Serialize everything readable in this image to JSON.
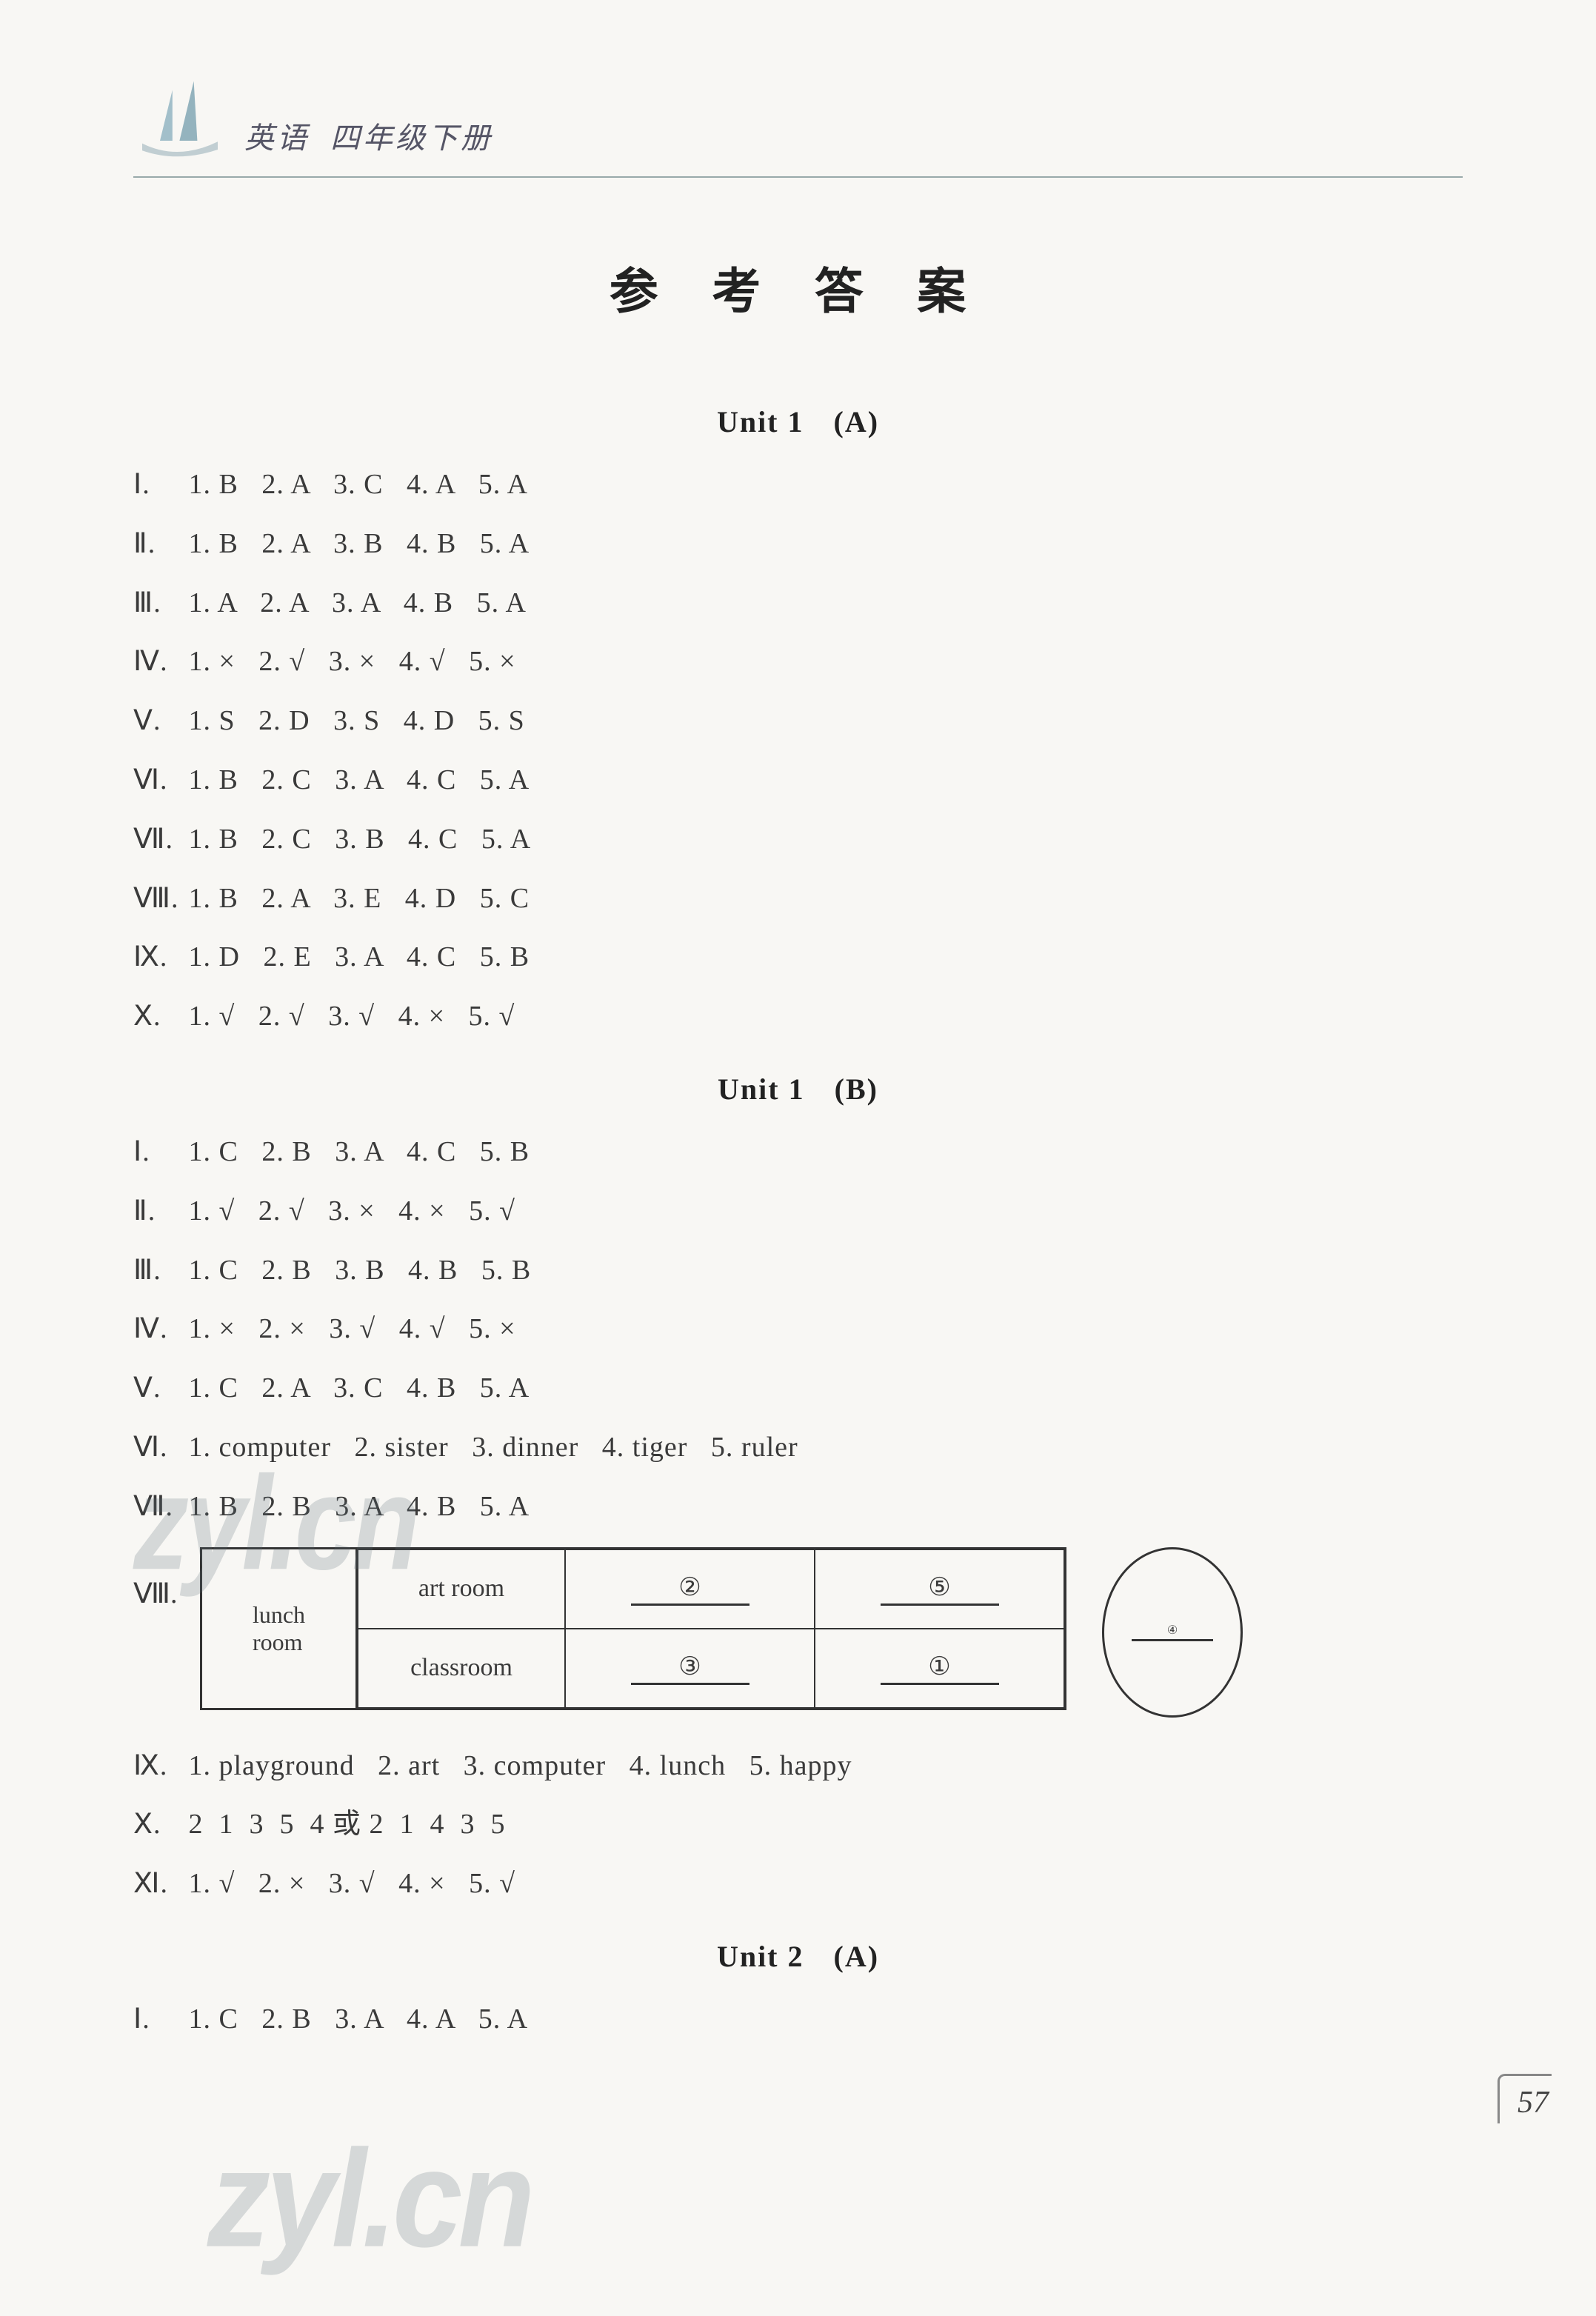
{
  "header": {
    "subject": "英语",
    "grade": "四年级下册"
  },
  "title": "参 考 答 案",
  "page_number": "57",
  "watermark": "zyl.cn",
  "colors": {
    "text": "#3a3a3a",
    "title": "#222222",
    "rule": "#99aaaa",
    "background": "#f8f7f4",
    "watermark": "rgba(90,110,120,0.22)"
  },
  "typography": {
    "body_fontsize_pt": 28,
    "title_fontsize_pt": 50,
    "heading_fontsize_pt": 30
  },
  "sections": [
    {
      "heading": "Unit 1",
      "variant": "(A)",
      "lines": [
        {
          "roman": "Ⅰ",
          "items": [
            "1. B",
            "2. A",
            "3. C",
            "4. A",
            "5. A"
          ]
        },
        {
          "roman": "Ⅱ",
          "items": [
            "1. B",
            "2. A",
            "3. B",
            "4. B",
            "5. A"
          ]
        },
        {
          "roman": "Ⅲ",
          "items": [
            "1. A",
            "2. A",
            "3. A",
            "4. B",
            "5. A"
          ]
        },
        {
          "roman": "Ⅳ",
          "items": [
            "1. ×",
            "2. √",
            "3. ×",
            "4. √",
            "5. ×"
          ]
        },
        {
          "roman": "Ⅴ",
          "items": [
            "1. S",
            "2. D",
            "3. S",
            "4. D",
            "5. S"
          ]
        },
        {
          "roman": "Ⅵ",
          "items": [
            "1. B",
            "2. C",
            "3. A",
            "4. C",
            "5. A"
          ]
        },
        {
          "roman": "Ⅶ",
          "items": [
            "1. B",
            "2. C",
            "3. B",
            "4. C",
            "5. A"
          ]
        },
        {
          "roman": "Ⅷ",
          "items": [
            "1. B",
            "2. A",
            "3. E",
            "4. D",
            "5. C"
          ]
        },
        {
          "roman": "Ⅸ",
          "items": [
            "1. D",
            "2. E",
            "3. A",
            "4. C",
            "5. B"
          ]
        },
        {
          "roman": "Ⅹ",
          "items": [
            "1. √",
            "2. √",
            "3. √",
            "4. ×",
            "5. √"
          ]
        }
      ]
    },
    {
      "heading": "Unit 1",
      "variant": "(B)",
      "lines": [
        {
          "roman": "Ⅰ",
          "items": [
            "1. C",
            "2. B",
            "3. A",
            "4. C",
            "5. B"
          ]
        },
        {
          "roman": "Ⅱ",
          "items": [
            "1. √",
            "2. √",
            "3. ×",
            "4. ×",
            "5. √"
          ]
        },
        {
          "roman": "Ⅲ",
          "items": [
            "1. C",
            "2. B",
            "3. B",
            "4. B",
            "5. B"
          ]
        },
        {
          "roman": "Ⅳ",
          "items": [
            "1. ×",
            "2. ×",
            "3. √",
            "4. √",
            "5. ×"
          ]
        },
        {
          "roman": "Ⅴ",
          "items": [
            "1. C",
            "2. A",
            "3. C",
            "4. B",
            "5. A"
          ]
        },
        {
          "roman": "Ⅵ",
          "items": [
            "1. computer",
            "2. sister",
            "3. dinner",
            "4. tiger",
            "5. ruler"
          ]
        },
        {
          "roman": "Ⅶ",
          "items": [
            "1. B",
            "2. B",
            "3. A",
            "4. B",
            "5. A"
          ]
        }
      ],
      "diagram": {
        "roman": "Ⅷ",
        "left_box": "lunch room",
        "grid": {
          "rows": [
            {
              "label": "art room",
              "cells": [
                "②",
                "⑤"
              ]
            },
            {
              "label": "classroom",
              "cells": [
                "③",
                "①"
              ]
            }
          ]
        },
        "oval": "④"
      },
      "lines_after": [
        {
          "roman": "Ⅸ",
          "items": [
            "1. playground",
            "2. art",
            "3. computer",
            "4. lunch",
            "5. happy"
          ]
        },
        {
          "roman": "Ⅹ",
          "items": [
            "2  1  3  5  4 或 2  1  4  3  5"
          ]
        },
        {
          "roman": "Ⅺ",
          "items": [
            "1. √",
            "2. ×",
            "3. √",
            "4. ×",
            "5. √"
          ]
        }
      ]
    },
    {
      "heading": "Unit 2",
      "variant": "(A)",
      "lines": [
        {
          "roman": "Ⅰ",
          "items": [
            "1. C",
            "2. B",
            "3. A",
            "4. A",
            "5. A"
          ]
        }
      ]
    }
  ]
}
